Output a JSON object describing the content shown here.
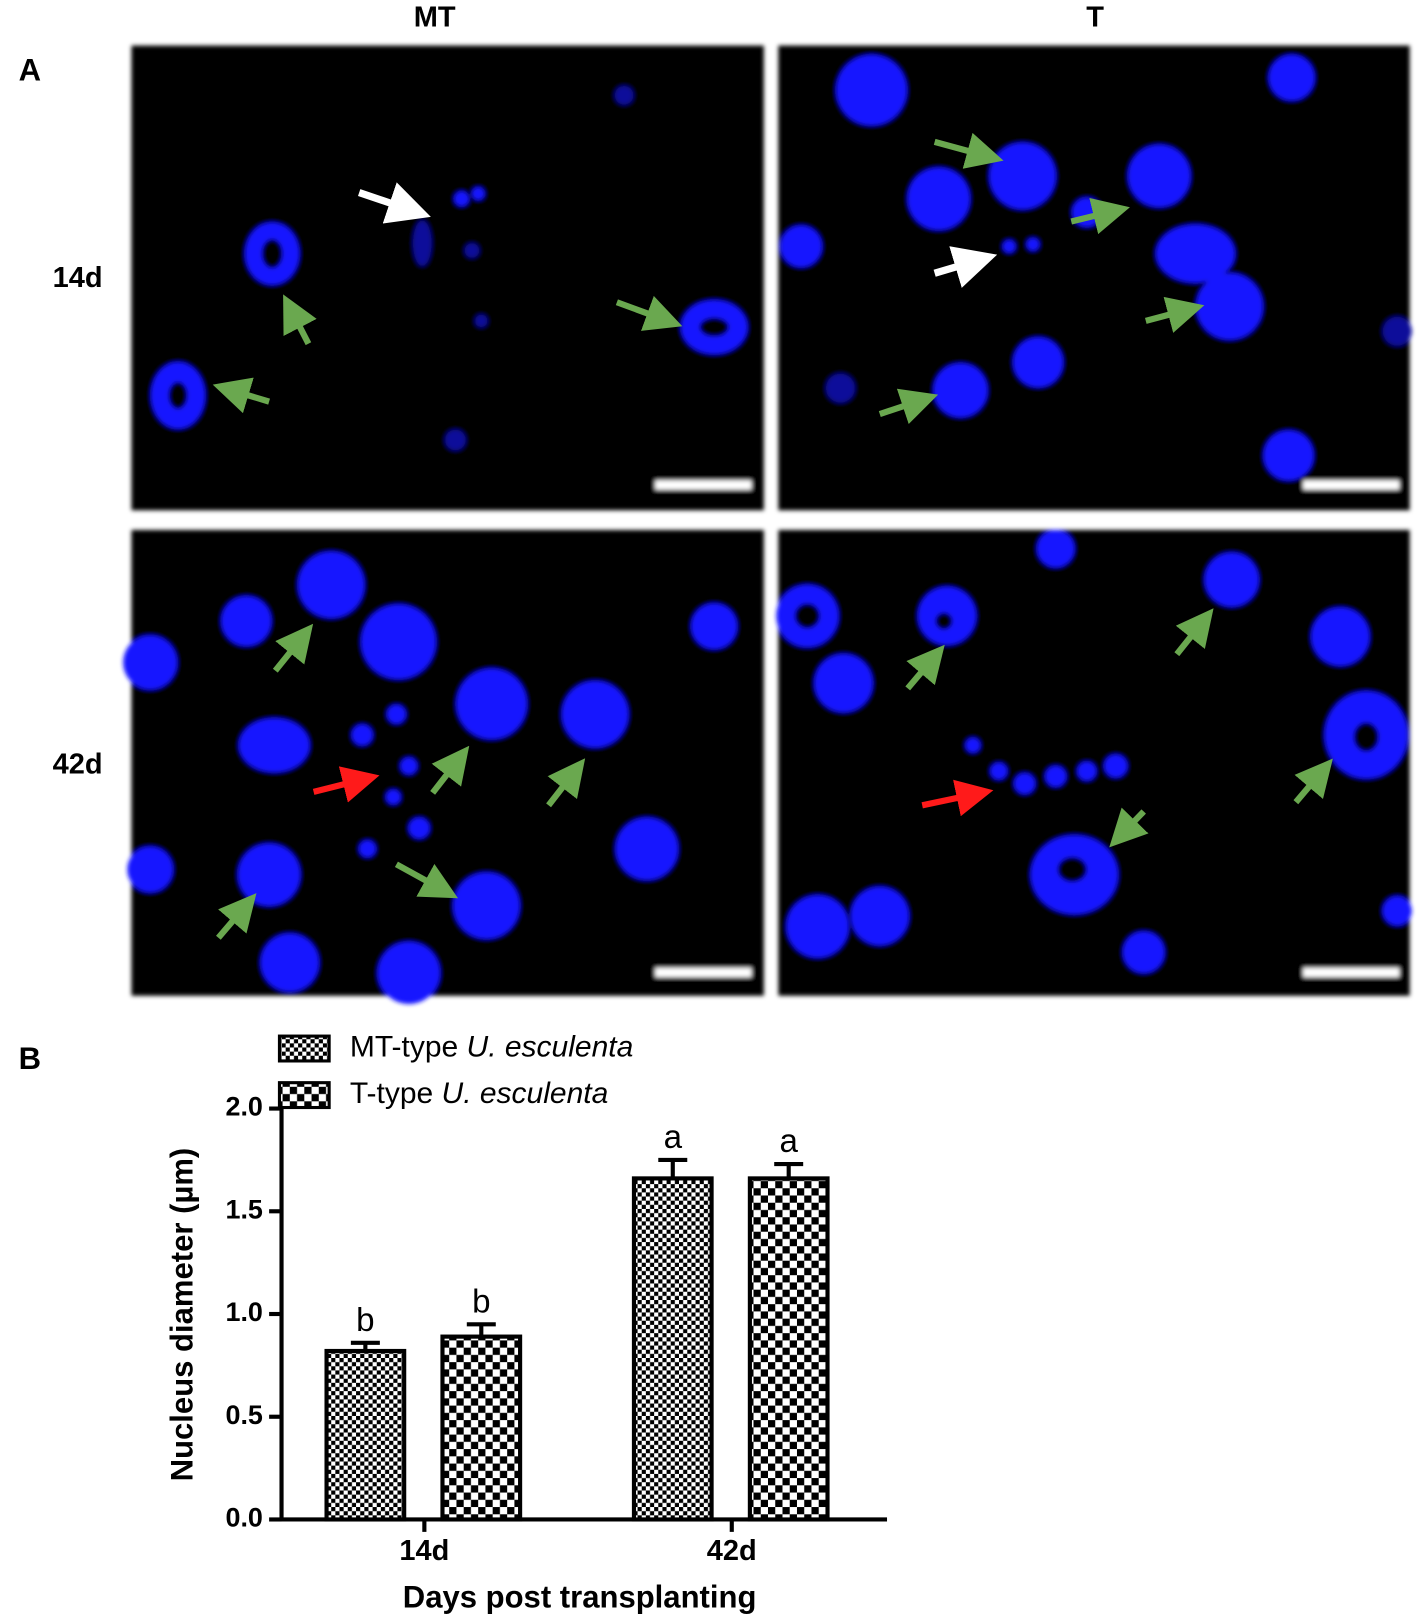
{
  "panel_a": {
    "label": "A",
    "columns": [
      "MT",
      "T"
    ],
    "rows": [
      "14d",
      "42d"
    ]
  },
  "panel_b": {
    "label": "B"
  },
  "chart_data": {
    "type": "bar",
    "categories": [
      "14d",
      "42d"
    ],
    "x_label": "Days post transplanting",
    "y_label": "Nucleus diameter (µm)",
    "ylim": [
      0,
      2
    ],
    "yticks": [
      {
        "value": 0,
        "label": "0.0"
      },
      {
        "value": 0.5,
        "label": "0.5"
      },
      {
        "value": 1,
        "label": "1.0"
      },
      {
        "value": 1.5,
        "label": "1.5"
      },
      {
        "value": 2,
        "label": "2.0"
      }
    ],
    "series": [
      {
        "name": "MT-type U. esculenta",
        "color": "#000000",
        "pattern": "fine-checker",
        "values": [
          0.82,
          1.66
        ],
        "errors": [
          0.04,
          0.09
        ],
        "significance": [
          "b",
          "a"
        ]
      },
      {
        "name": "T-type U. esculenta",
        "color": "#000000",
        "pattern": "coarse-checker",
        "values": [
          0.89,
          1.66
        ],
        "errors": [
          0.06,
          0.07
        ],
        "significance": [
          "b",
          "a"
        ]
      }
    ],
    "legend": "top-left"
  }
}
